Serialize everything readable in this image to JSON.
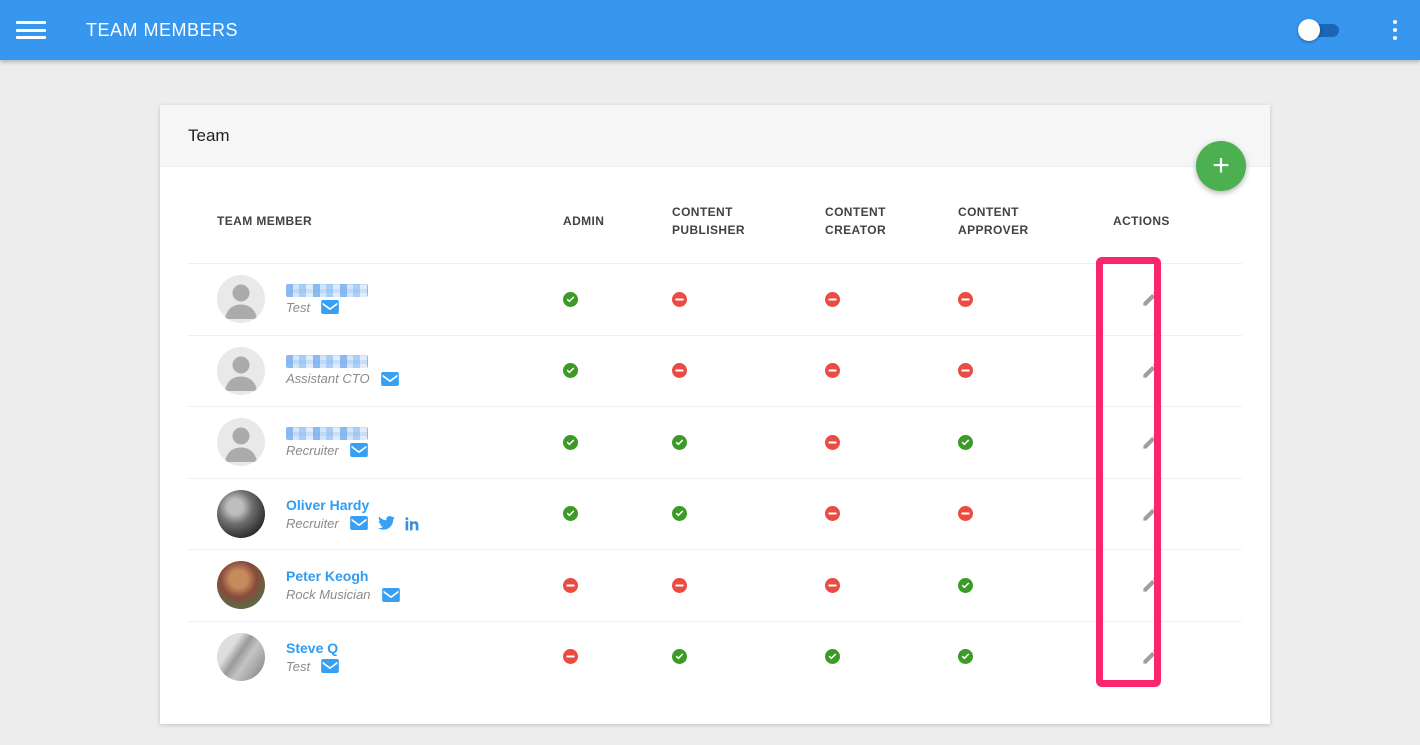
{
  "app_bar": {
    "title": "TEAM MEMBERS",
    "toggle_state": "off"
  },
  "card": {
    "title": "Team",
    "add_button_label": "+"
  },
  "table": {
    "columns": [
      {
        "key": "member",
        "label": "TEAM MEMBER"
      },
      {
        "key": "admin",
        "label": "ADMIN"
      },
      {
        "key": "content_publisher",
        "label": "CONTENT PUBLISHER"
      },
      {
        "key": "content_creator",
        "label": "CONTENT CREATOR"
      },
      {
        "key": "content_approver",
        "label": "CONTENT APPROVER"
      },
      {
        "key": "actions",
        "label": "ACTIONS"
      }
    ],
    "rows": [
      {
        "name": "",
        "name_redacted": true,
        "role": "Test",
        "avatar": "silhouette",
        "social": [
          "email"
        ],
        "permissions": {
          "admin": true,
          "content_publisher": false,
          "content_creator": false,
          "content_approver": false
        },
        "actions": [
          "edit"
        ]
      },
      {
        "name": "",
        "name_redacted": true,
        "role": "Assistant CTO",
        "avatar": "silhouette",
        "social": [
          "email"
        ],
        "permissions": {
          "admin": true,
          "content_publisher": false,
          "content_creator": false,
          "content_approver": false
        },
        "actions": [
          "edit"
        ]
      },
      {
        "name": "",
        "name_redacted": true,
        "role": "Recruiter",
        "avatar": "silhouette",
        "social": [
          "email"
        ],
        "permissions": {
          "admin": true,
          "content_publisher": true,
          "content_creator": false,
          "content_approver": true
        },
        "actions": [
          "edit"
        ]
      },
      {
        "name": "Oliver Hardy",
        "name_redacted": false,
        "role": "Recruiter",
        "avatar": "photo-dark-bw",
        "social": [
          "email",
          "twitter",
          "linkedin"
        ],
        "permissions": {
          "admin": true,
          "content_publisher": true,
          "content_creator": false,
          "content_approver": false
        },
        "actions": [
          "edit"
        ]
      },
      {
        "name": "Peter Keogh",
        "name_redacted": false,
        "role": "Rock Musician",
        "avatar": "photo-color",
        "social": [
          "email"
        ],
        "permissions": {
          "admin": false,
          "content_publisher": false,
          "content_creator": false,
          "content_approver": true
        },
        "actions": [
          "edit"
        ]
      },
      {
        "name": "Steve Q",
        "name_redacted": false,
        "role": "Test",
        "avatar": "photo-light-bw",
        "social": [
          "email"
        ],
        "permissions": {
          "admin": false,
          "content_publisher": true,
          "content_creator": true,
          "content_approver": true
        },
        "actions": [
          "edit"
        ]
      }
    ]
  },
  "annotation": {
    "type": "highlight-rectangle",
    "target": "actions-column",
    "color": "#F9266B"
  },
  "colors": {
    "appbar_blue": "#3796EE",
    "toggle_track_blue": "#1B66B5",
    "fab_green": "#4CAF50",
    "status_granted_green": "#3C9A27",
    "status_denied_red": "#EA4C43",
    "link_blue": "#2F9CF2",
    "highlight_pink": "#F9266B",
    "page_background": "#EDEDED"
  }
}
